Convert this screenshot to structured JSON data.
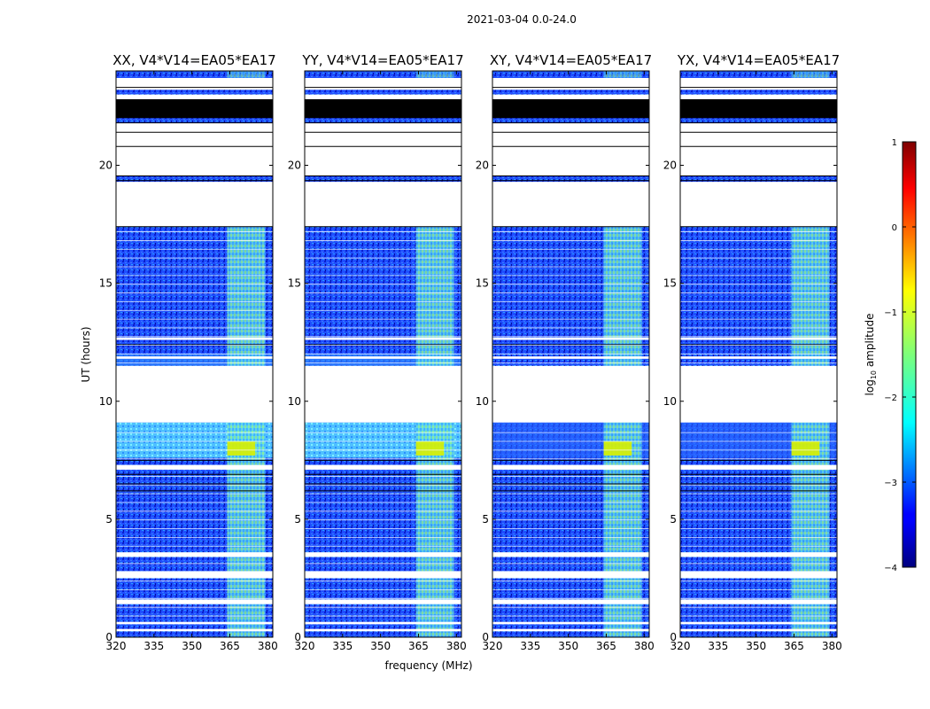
{
  "figure_title": "2021-03-04 0.0-24.0",
  "chart_data": {
    "type": "heatmap",
    "suptitle": "2021-03-04 0.0-24.0",
    "xlabel": "frequency (MHz)",
    "ylabel": "UT (hours)",
    "xlim": [
      320,
      382
    ],
    "ylim": [
      0,
      24
    ],
    "xticks": [
      320,
      335,
      350,
      365,
      380
    ],
    "yticks": [
      0,
      5,
      10,
      15,
      20
    ],
    "panels": [
      {
        "title": "XX, V4*V14=EA05*EA17"
      },
      {
        "title": "YY, V4*V14=EA05*EA17"
      },
      {
        "title": "XY, V4*V14=EA05*EA17"
      },
      {
        "title": "YX, V4*V14=EA05*EA17"
      }
    ],
    "colorbar": {
      "label": "log10 amplitude",
      "label_base": "log",
      "label_sub": "10",
      "label_rest": " amplitude",
      "range": [
        -4,
        1
      ],
      "ticks": [
        1,
        0,
        -1,
        -2,
        -3,
        -4
      ],
      "tick_labels": [
        "1",
        "0",
        "−1",
        "−2",
        "−3",
        "−4"
      ],
      "colormap": "jet"
    },
    "flagged_ut_ranges": [
      [
        0.25,
        0.35
      ],
      [
        0.55,
        0.65
      ],
      [
        1.4,
        1.6
      ],
      [
        2.5,
        2.8
      ],
      [
        3.4,
        3.6
      ],
      [
        7.1,
        7.3
      ],
      [
        9.1,
        11.5
      ],
      [
        11.8,
        11.9
      ],
      [
        12.6,
        12.7
      ],
      [
        17.4,
        19.3
      ],
      [
        19.55,
        21.8
      ],
      [
        22.2,
        23.0
      ],
      [
        23.2,
        23.7
      ]
    ],
    "bright_band_mhz": [
      364,
      379
    ]
  },
  "colors": {
    "low": "#00008f",
    "mid_low": "#0050ff",
    "mid": "#00ffff",
    "mid_high": "#80ff80",
    "high": "#ffff00",
    "max": "#800000"
  }
}
